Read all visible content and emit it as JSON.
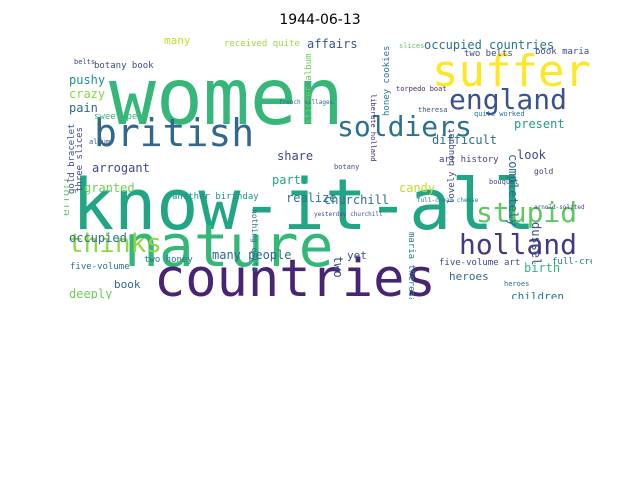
{
  "title": "1944-06-13",
  "words": [
    {
      "text": "women",
      "color": "#35b779"
    },
    {
      "text": "know-it-all",
      "color": "#21a585"
    },
    {
      "text": "nature",
      "color": "#35b779"
    },
    {
      "text": "countries",
      "color": "#482475"
    },
    {
      "text": "british",
      "color": "#31688e"
    },
    {
      "text": "suffer",
      "color": "#fde725"
    },
    {
      "text": "soldiers",
      "color": "#2c728e"
    },
    {
      "text": "england",
      "color": "#3b528b"
    },
    {
      "text": "holland",
      "color": "#443983"
    },
    {
      "text": "stupid",
      "color": "#5ec962"
    },
    {
      "text": "thinks",
      "color": "#90d743"
    },
    {
      "text": "occupied countries",
      "color": "#2c728e"
    },
    {
      "text": "affairs",
      "color": "#3b528b"
    },
    {
      "text": "many",
      "color": "#c2df23"
    },
    {
      "text": "received quite",
      "color": "#9bd93c"
    },
    {
      "text": "botany book",
      "color": "#3e4a89"
    },
    {
      "text": "pushy",
      "color": "#21918c"
    },
    {
      "text": "pain",
      "color": "#31688e"
    },
    {
      "text": "crazy",
      "color": "#86d549"
    },
    {
      "text": "sweet peas",
      "color": "#35b779"
    },
    {
      "text": "sticker album",
      "color": "#6ece58"
    },
    {
      "text": "honey cookies",
      "color": "#2a788e"
    },
    {
      "text": "present",
      "color": "#1f9e89"
    },
    {
      "text": "difficult",
      "color": "#2c728e"
    },
    {
      "text": "completely",
      "color": "#31688e"
    },
    {
      "text": "art history",
      "color": "#433e85"
    },
    {
      "text": "look",
      "color": "#3e4989"
    },
    {
      "text": "share",
      "color": "#404688"
    },
    {
      "text": "parts",
      "color": "#22a884"
    },
    {
      "text": "arrogant",
      "color": "#3e4989"
    },
    {
      "text": "granted",
      "color": "#6ece58"
    },
    {
      "text": "another birthday",
      "color": "#21918c"
    },
    {
      "text": "realize",
      "color": "#2a788e"
    },
    {
      "text": "churchill",
      "color": "#2c728e"
    },
    {
      "text": "candy",
      "color": "#bddf26"
    },
    {
      "text": "dussel",
      "color": "#3b528b"
    },
    {
      "text": "effort",
      "color": "#5ec962"
    },
    {
      "text": "occupied",
      "color": "#2c728e"
    },
    {
      "text": "many people",
      "color": "#31688e"
    },
    {
      "text": "book",
      "color": "#31688e"
    },
    {
      "text": "yet",
      "color": "#3b528b"
    },
    {
      "text": "two",
      "color": "#3e4a89"
    },
    {
      "text": "birth",
      "color": "#35b779"
    },
    {
      "text": "heroes",
      "color": "#31688e"
    },
    {
      "text": "children",
      "color": "#2c728e"
    },
    {
      "text": "five-volume art",
      "color": "#3e4a89"
    },
    {
      "text": "five-volume",
      "color": "#2c728e"
    },
    {
      "text": "deeply",
      "color": "#6ece58"
    },
    {
      "text": "two honey",
      "color": "#2a788e"
    },
    {
      "text": "maria theresa",
      "color": "#2a788e"
    },
    {
      "text": "gold bracelet",
      "color": "#3b528b"
    },
    {
      "text": "three slices",
      "color": "#3e4a89"
    },
    {
      "text": "book maria",
      "color": "#3e4989"
    },
    {
      "text": "two belts",
      "color": "#3e4989"
    },
    {
      "text": "lovely bouquet",
      "color": "#3e4989"
    },
    {
      "text": "full-cream",
      "color": "#2a788e"
    },
    {
      "text": "belts",
      "color": "#414487"
    },
    {
      "text": "album",
      "color": "#3b528b"
    },
    {
      "text": "botany",
      "color": "#3e4989"
    },
    {
      "text": "theresa",
      "color": "#3b528b"
    },
    {
      "text": "quite worked",
      "color": "#2c728e"
    },
    {
      "text": "gold",
      "color": "#414487"
    },
    {
      "text": "slices",
      "color": "#5ec962"
    },
    {
      "text": "bouquet",
      "color": "#3e4a89"
    },
    {
      "text": "torpedo boat",
      "color": "#482878"
    },
    {
      "text": "nothing quite",
      "color": "#2a788e"
    },
    {
      "text": "liberate holland",
      "color": "#482878"
    },
    {
      "text": "french villages",
      "color": "#31688e"
    },
    {
      "text": "yesterday churchill",
      "color": "#3b528b"
    },
    {
      "text": "full-cream cheese",
      "color": "#2a788e"
    },
    {
      "text": "arnold-solzted",
      "color": "#3e4a89"
    },
    {
      "text": "heroes",
      "color": "#31688e"
    }
  ]
}
